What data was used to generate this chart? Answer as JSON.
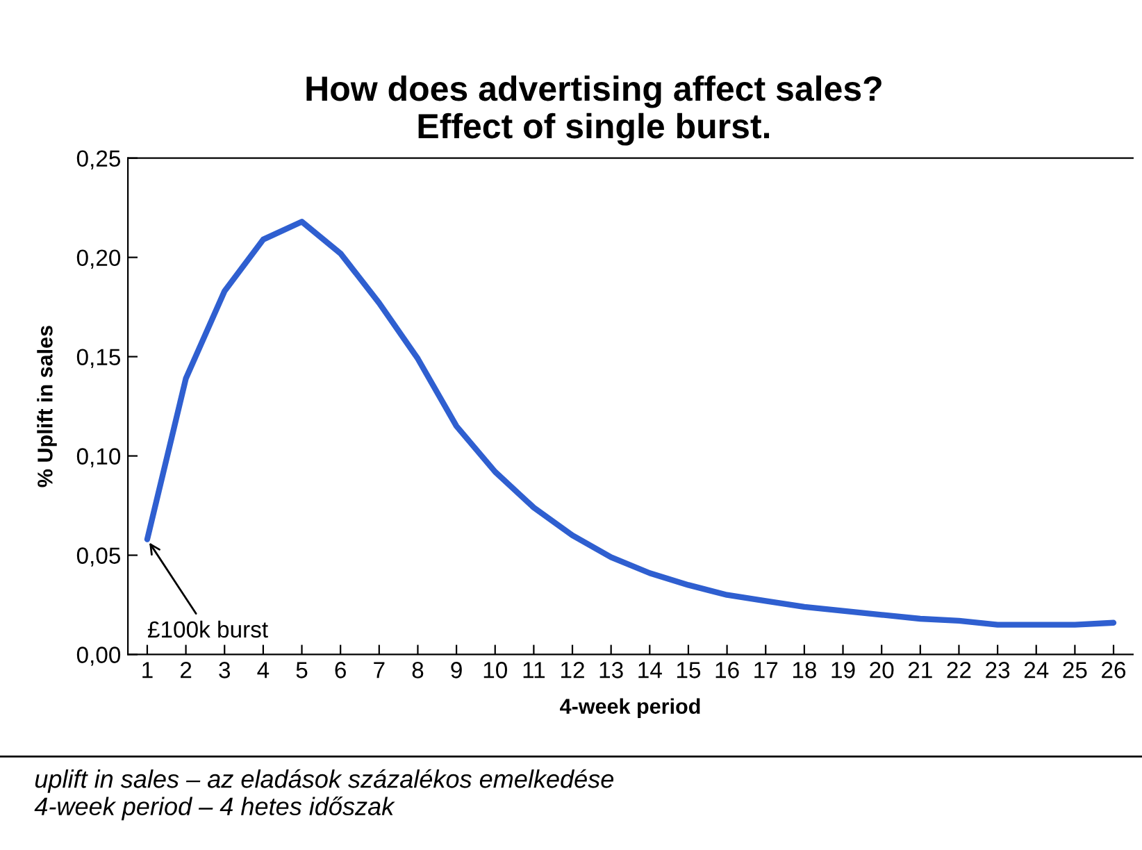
{
  "chart_data": {
    "type": "line",
    "title": "How does advertising affect sales?\nEffect of single burst.",
    "xlabel": "4-week period",
    "ylabel": "% Uplift in sales",
    "x": [
      1,
      2,
      3,
      4,
      5,
      6,
      7,
      8,
      9,
      10,
      11,
      12,
      13,
      14,
      15,
      16,
      17,
      18,
      19,
      20,
      21,
      22,
      23,
      24,
      25,
      26
    ],
    "series": [
      {
        "color": "#2f5fd0",
        "values": [
          0.058,
          0.139,
          0.183,
          0.209,
          0.218,
          0.202,
          0.177,
          0.149,
          0.115,
          0.092,
          0.074,
          0.06,
          0.049,
          0.041,
          0.035,
          0.03,
          0.027,
          0.024,
          0.022,
          0.02,
          0.018,
          0.017,
          0.015,
          0.015,
          0.015,
          0.016
        ]
      }
    ],
    "xlim": [
      0.5,
      26.5
    ],
    "ylim": [
      0,
      0.25
    ],
    "xticks": [
      1,
      2,
      3,
      4,
      5,
      6,
      7,
      8,
      9,
      10,
      11,
      12,
      13,
      14,
      15,
      16,
      17,
      18,
      19,
      20,
      21,
      22,
      23,
      24,
      25,
      26
    ],
    "yticks": [
      {
        "value": 0,
        "label": "0,00"
      },
      {
        "value": 0.05,
        "label": "0,05"
      },
      {
        "value": 0.1,
        "label": "0,10"
      },
      {
        "value": 0.15,
        "label": "0,15"
      },
      {
        "value": 0.2,
        "label": "0,20"
      },
      {
        "value": 0.25,
        "label": "0,25"
      }
    ],
    "grid": false,
    "marker": "none",
    "line_style": "solid",
    "annotations": [
      {
        "text": "£100k burst",
        "x": 1,
        "y": 0.058
      },
      "uplift in sales – az eladások százalékos emelkedése\n4-week period – 4 hetes időszak"
    ]
  }
}
